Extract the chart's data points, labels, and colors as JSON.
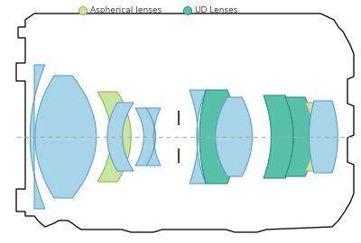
{
  "background_color": "#ffffff",
  "axis_color": "#aaaaaa",
  "lens_blue": "#a8d4e8",
  "lens_blue_edge": "#5fa0c8",
  "lens_green_asp": "#c8e6a0",
  "lens_green_ud": "#58c0a8",
  "lens_green_ud_edge": "#2a9080",
  "lens_green_asp_edge": "#8ab860",
  "aperture_color": "#444444",
  "body_color": "#111111",
  "legend_asp_color": "#c8e6a0",
  "legend_ud_color": "#58c0a8",
  "legend_asp_text": "Aspherical lenses",
  "legend_ud_text": "UD Lenses",
  "figsize": [
    4.0,
    2.7
  ],
  "dpi": 100
}
